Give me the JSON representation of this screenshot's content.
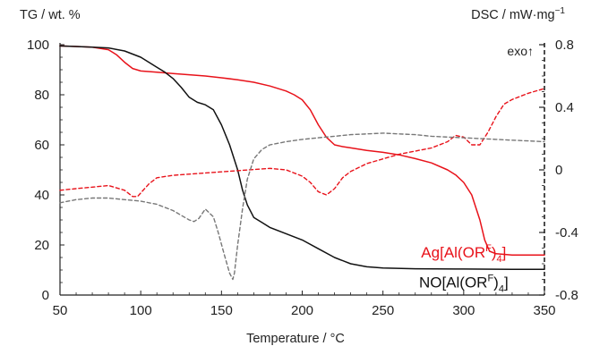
{
  "chart_data": {
    "type": "line",
    "xlabel": "Temperature / °C",
    "ylabel_left": "TG / wt. %",
    "ylabel_right": "DSC / mW·mg",
    "ylabel_right_sup": "−1",
    "exo_label": "exo↑",
    "xlim": [
      50,
      350
    ],
    "ylim_left": [
      0,
      100
    ],
    "ylim_right": [
      -0.8,
      0.8
    ],
    "x_ticks": [
      50,
      100,
      150,
      200,
      250,
      300,
      350
    ],
    "y_left_ticks": [
      0,
      20,
      40,
      60,
      80,
      100
    ],
    "y_right_ticks": [
      -0.8,
      -0.4,
      0,
      0.4,
      0.8
    ],
    "y_right_tick_labels": [
      "-0.8",
      "-0.4",
      "0",
      "0.4",
      "0.8"
    ],
    "grid": false,
    "series_labels": [
      {
        "text": "Ag[Al(OR",
        "sup": "F",
        "close": ")",
        "sub": "4",
        "end": "]",
        "color": "#e8121a",
        "at": [
          300,
          15
        ]
      },
      {
        "text": "NO[Al(OR",
        "sup": "F",
        "close": ")",
        "sub": "4",
        "end": "]",
        "color": "#111111",
        "at": [
          300,
          3
        ]
      }
    ],
    "series": [
      {
        "id": "ag_tg",
        "axis": "left",
        "color": "#e8121a",
        "dash": false,
        "x": [
          50,
          60,
          70,
          80,
          85,
          90,
          95,
          100,
          110,
          120,
          130,
          140,
          150,
          160,
          170,
          180,
          190,
          195,
          200,
          205,
          210,
          215,
          220,
          225,
          230,
          240,
          250,
          260,
          270,
          280,
          290,
          295,
          300,
          305,
          310,
          313,
          316,
          320,
          330,
          340,
          350
        ],
        "values": [
          99.5,
          99.3,
          99,
          98,
          96,
          93,
          90.5,
          89.5,
          89,
          88.5,
          88,
          87.5,
          86.8,
          86,
          85,
          83.5,
          81.5,
          80,
          78,
          74,
          68,
          63,
          60,
          59.3,
          58.8,
          57.8,
          57,
          56,
          54.5,
          52.8,
          50,
          48,
          45,
          40,
          30,
          22,
          17.5,
          16.5,
          16,
          16,
          16
        ]
      },
      {
        "id": "no_tg",
        "axis": "left",
        "color": "#111111",
        "dash": false,
        "x": [
          50,
          60,
          70,
          80,
          90,
          100,
          110,
          115,
          120,
          125,
          130,
          135,
          140,
          145,
          150,
          155,
          160,
          163,
          166,
          170,
          175,
          180,
          190,
          200,
          210,
          220,
          230,
          240,
          250,
          270,
          300,
          330,
          350
        ],
        "values": [
          99.5,
          99.3,
          99,
          98.7,
          97.5,
          95,
          91,
          89,
          86.5,
          83,
          79,
          77,
          76,
          74,
          68,
          60,
          50,
          42,
          36,
          31,
          29,
          27,
          24.5,
          22,
          18.5,
          15,
          12.5,
          11.3,
          10.8,
          10.5,
          10.4,
          10.3,
          10.3
        ]
      },
      {
        "id": "ag_dsc",
        "axis": "right",
        "color": "#e8121a",
        "dash": true,
        "x": [
          50,
          60,
          70,
          80,
          90,
          95,
          98,
          105,
          110,
          120,
          140,
          160,
          180,
          190,
          200,
          205,
          210,
          215,
          220,
          225,
          230,
          240,
          250,
          260,
          270,
          280,
          290,
          295,
          300,
          305,
          310,
          315,
          320,
          325,
          330,
          340,
          350
        ],
        "values": [
          -0.13,
          -0.12,
          -0.11,
          -0.1,
          -0.13,
          -0.17,
          -0.17,
          -0.09,
          -0.05,
          -0.035,
          -0.02,
          -0.005,
          0.01,
          0.0,
          -0.04,
          -0.08,
          -0.14,
          -0.16,
          -0.12,
          -0.05,
          -0.01,
          0.04,
          0.07,
          0.1,
          0.12,
          0.14,
          0.18,
          0.22,
          0.21,
          0.16,
          0.16,
          0.24,
          0.34,
          0.42,
          0.45,
          0.49,
          0.52
        ]
      },
      {
        "id": "no_dsc",
        "axis": "right",
        "color": "#777777",
        "dash": true,
        "x": [
          50,
          60,
          70,
          80,
          90,
          100,
          110,
          120,
          125,
          130,
          133,
          136,
          140,
          145,
          148,
          152,
          155,
          157,
          158,
          160,
          163,
          166,
          170,
          175,
          180,
          190,
          200,
          210,
          220,
          230,
          240,
          250,
          260,
          270,
          280,
          290,
          300,
          310,
          320,
          330,
          340,
          350
        ],
        "values": [
          -0.21,
          -0.19,
          -0.18,
          -0.18,
          -0.19,
          -0.2,
          -0.22,
          -0.26,
          -0.29,
          -0.32,
          -0.33,
          -0.31,
          -0.25,
          -0.3,
          -0.4,
          -0.55,
          -0.66,
          -0.7,
          -0.66,
          -0.48,
          -0.25,
          -0.06,
          0.07,
          0.13,
          0.16,
          0.18,
          0.195,
          0.205,
          0.215,
          0.225,
          0.23,
          0.235,
          0.23,
          0.225,
          0.215,
          0.21,
          0.205,
          0.2,
          0.195,
          0.19,
          0.185,
          0.18
        ]
      }
    ]
  }
}
